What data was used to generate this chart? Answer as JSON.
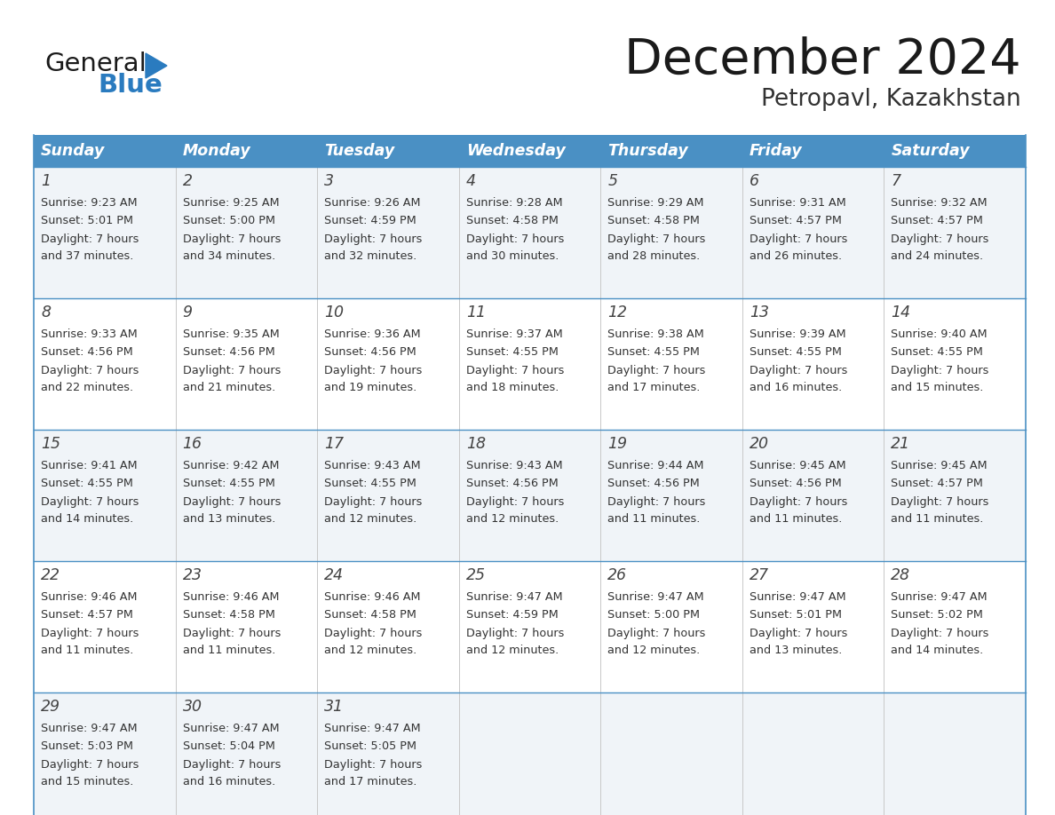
{
  "title": "December 2024",
  "subtitle": "Petropavl, Kazakhstan",
  "days_of_week": [
    "Sunday",
    "Monday",
    "Tuesday",
    "Wednesday",
    "Thursday",
    "Friday",
    "Saturday"
  ],
  "header_bg": "#4a90c4",
  "header_text": "#ffffff",
  "row_bg_odd": "#f0f4f8",
  "row_bg_even": "#ffffff",
  "cell_text": "#333333",
  "day_num_color": "#444444",
  "border_color": "#4a90c4",
  "title_color": "#1a1a1a",
  "subtitle_color": "#333333",
  "logo_general_color": "#1a1a1a",
  "logo_blue_color": "#2a7bbf",
  "weeks": [
    [
      {
        "day": 1,
        "sunrise": "9:23 AM",
        "sunset": "5:01 PM",
        "daylight": "7 hours",
        "daylight2": "and 37 minutes."
      },
      {
        "day": 2,
        "sunrise": "9:25 AM",
        "sunset": "5:00 PM",
        "daylight": "7 hours",
        "daylight2": "and 34 minutes."
      },
      {
        "day": 3,
        "sunrise": "9:26 AM",
        "sunset": "4:59 PM",
        "daylight": "7 hours",
        "daylight2": "and 32 minutes."
      },
      {
        "day": 4,
        "sunrise": "9:28 AM",
        "sunset": "4:58 PM",
        "daylight": "7 hours",
        "daylight2": "and 30 minutes."
      },
      {
        "day": 5,
        "sunrise": "9:29 AM",
        "sunset": "4:58 PM",
        "daylight": "7 hours",
        "daylight2": "and 28 minutes."
      },
      {
        "day": 6,
        "sunrise": "9:31 AM",
        "sunset": "4:57 PM",
        "daylight": "7 hours",
        "daylight2": "and 26 minutes."
      },
      {
        "day": 7,
        "sunrise": "9:32 AM",
        "sunset": "4:57 PM",
        "daylight": "7 hours",
        "daylight2": "and 24 minutes."
      }
    ],
    [
      {
        "day": 8,
        "sunrise": "9:33 AM",
        "sunset": "4:56 PM",
        "daylight": "7 hours",
        "daylight2": "and 22 minutes."
      },
      {
        "day": 9,
        "sunrise": "9:35 AM",
        "sunset": "4:56 PM",
        "daylight": "7 hours",
        "daylight2": "and 21 minutes."
      },
      {
        "day": 10,
        "sunrise": "9:36 AM",
        "sunset": "4:56 PM",
        "daylight": "7 hours",
        "daylight2": "and 19 minutes."
      },
      {
        "day": 11,
        "sunrise": "9:37 AM",
        "sunset": "4:55 PM",
        "daylight": "7 hours",
        "daylight2": "and 18 minutes."
      },
      {
        "day": 12,
        "sunrise": "9:38 AM",
        "sunset": "4:55 PM",
        "daylight": "7 hours",
        "daylight2": "and 17 minutes."
      },
      {
        "day": 13,
        "sunrise": "9:39 AM",
        "sunset": "4:55 PM",
        "daylight": "7 hours",
        "daylight2": "and 16 minutes."
      },
      {
        "day": 14,
        "sunrise": "9:40 AM",
        "sunset": "4:55 PM",
        "daylight": "7 hours",
        "daylight2": "and 15 minutes."
      }
    ],
    [
      {
        "day": 15,
        "sunrise": "9:41 AM",
        "sunset": "4:55 PM",
        "daylight": "7 hours",
        "daylight2": "and 14 minutes."
      },
      {
        "day": 16,
        "sunrise": "9:42 AM",
        "sunset": "4:55 PM",
        "daylight": "7 hours",
        "daylight2": "and 13 minutes."
      },
      {
        "day": 17,
        "sunrise": "9:43 AM",
        "sunset": "4:55 PM",
        "daylight": "7 hours",
        "daylight2": "and 12 minutes."
      },
      {
        "day": 18,
        "sunrise": "9:43 AM",
        "sunset": "4:56 PM",
        "daylight": "7 hours",
        "daylight2": "and 12 minutes."
      },
      {
        "day": 19,
        "sunrise": "9:44 AM",
        "sunset": "4:56 PM",
        "daylight": "7 hours",
        "daylight2": "and 11 minutes."
      },
      {
        "day": 20,
        "sunrise": "9:45 AM",
        "sunset": "4:56 PM",
        "daylight": "7 hours",
        "daylight2": "and 11 minutes."
      },
      {
        "day": 21,
        "sunrise": "9:45 AM",
        "sunset": "4:57 PM",
        "daylight": "7 hours",
        "daylight2": "and 11 minutes."
      }
    ],
    [
      {
        "day": 22,
        "sunrise": "9:46 AM",
        "sunset": "4:57 PM",
        "daylight": "7 hours",
        "daylight2": "and 11 minutes."
      },
      {
        "day": 23,
        "sunrise": "9:46 AM",
        "sunset": "4:58 PM",
        "daylight": "7 hours",
        "daylight2": "and 11 minutes."
      },
      {
        "day": 24,
        "sunrise": "9:46 AM",
        "sunset": "4:58 PM",
        "daylight": "7 hours",
        "daylight2": "and 12 minutes."
      },
      {
        "day": 25,
        "sunrise": "9:47 AM",
        "sunset": "4:59 PM",
        "daylight": "7 hours",
        "daylight2": "and 12 minutes."
      },
      {
        "day": 26,
        "sunrise": "9:47 AM",
        "sunset": "5:00 PM",
        "daylight": "7 hours",
        "daylight2": "and 12 minutes."
      },
      {
        "day": 27,
        "sunrise": "9:47 AM",
        "sunset": "5:01 PM",
        "daylight": "7 hours",
        "daylight2": "and 13 minutes."
      },
      {
        "day": 28,
        "sunrise": "9:47 AM",
        "sunset": "5:02 PM",
        "daylight": "7 hours",
        "daylight2": "and 14 minutes."
      }
    ],
    [
      {
        "day": 29,
        "sunrise": "9:47 AM",
        "sunset": "5:03 PM",
        "daylight": "7 hours",
        "daylight2": "and 15 minutes."
      },
      {
        "day": 30,
        "sunrise": "9:47 AM",
        "sunset": "5:04 PM",
        "daylight": "7 hours",
        "daylight2": "and 16 minutes."
      },
      {
        "day": 31,
        "sunrise": "9:47 AM",
        "sunset": "5:05 PM",
        "daylight": "7 hours",
        "daylight2": "and 17 minutes."
      },
      null,
      null,
      null,
      null
    ]
  ]
}
